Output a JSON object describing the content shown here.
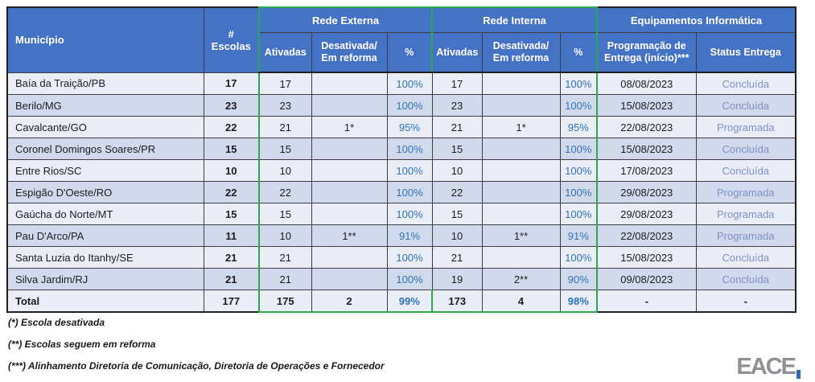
{
  "table": {
    "groups": {
      "rede_externa": "Rede Externa",
      "rede_interna": "Rede Interna",
      "equipamentos": "Equipamentos Informática"
    },
    "headers": {
      "municipio": "Município",
      "escolas": "# Escolas",
      "ativadas": "Ativadas",
      "desativada": "Desativada/ Em reforma",
      "pct": "%",
      "programacao": "Programação de Entrega (início)***",
      "status": "Status Entrega"
    },
    "rows": [
      {
        "municipio": "Baía da Traição/PB",
        "escolas": "17",
        "re_ativadas": "17",
        "re_desativada": "",
        "re_pct": "100%",
        "ri_ativadas": "17",
        "ri_desativada": "",
        "ri_pct": "100%",
        "programacao": "08/08/2023",
        "status": "Concluída"
      },
      {
        "municipio": "Berilo/MG",
        "escolas": "23",
        "re_ativadas": "23",
        "re_desativada": "",
        "re_pct": "100%",
        "ri_ativadas": "23",
        "ri_desativada": "",
        "ri_pct": "100%",
        "programacao": "15/08/2023",
        "status": "Concluída"
      },
      {
        "municipio": "Cavalcante/GO",
        "escolas": "22",
        "re_ativadas": "21",
        "re_desativada": "1*",
        "re_pct": "95%",
        "ri_ativadas": "21",
        "ri_desativada": "1*",
        "ri_pct": "95%",
        "programacao": "22/08/2023",
        "status": "Programada"
      },
      {
        "municipio": "Coronel Domingos Soares/PR",
        "escolas": "15",
        "re_ativadas": "15",
        "re_desativada": "",
        "re_pct": "100%",
        "ri_ativadas": "15",
        "ri_desativada": "",
        "ri_pct": "100%",
        "programacao": "15/08/2023",
        "status": "Concluída"
      },
      {
        "municipio": "Entre Rios/SC",
        "escolas": "10",
        "re_ativadas": "10",
        "re_desativada": "",
        "re_pct": "100%",
        "ri_ativadas": "10",
        "ri_desativada": "",
        "ri_pct": "100%",
        "programacao": "17/08/2023",
        "status": "Concluída"
      },
      {
        "municipio": "Espigão D'Oeste/RO",
        "escolas": "22",
        "re_ativadas": "22",
        "re_desativada": "",
        "re_pct": "100%",
        "ri_ativadas": "22",
        "ri_desativada": "",
        "ri_pct": "100%",
        "programacao": "29/08/2023",
        "status": "Programada"
      },
      {
        "municipio": "Gaúcha do Norte/MT",
        "escolas": "15",
        "re_ativadas": "15",
        "re_desativada": "",
        "re_pct": "100%",
        "ri_ativadas": "15",
        "ri_desativada": "",
        "ri_pct": "100%",
        "programacao": "29/08/2023",
        "status": "Programada"
      },
      {
        "municipio": "Pau D'Arco/PA",
        "escolas": "11",
        "re_ativadas": "10",
        "re_desativada": "1**",
        "re_pct": "91%",
        "ri_ativadas": "10",
        "ri_desativada": "1**",
        "ri_pct": "91%",
        "programacao": "22/08/2023",
        "status": "Programada"
      },
      {
        "municipio": "Santa Luzia do Itanhy/SE",
        "escolas": "21",
        "re_ativadas": "21",
        "re_desativada": "",
        "re_pct": "100%",
        "ri_ativadas": "21",
        "ri_desativada": "",
        "ri_pct": "100%",
        "programacao": "15/08/2023",
        "status": "Concluída"
      },
      {
        "municipio": "Silva Jardim/RJ",
        "escolas": "21",
        "re_ativadas": "21",
        "re_desativada": "",
        "re_pct": "100%",
        "ri_ativadas": "19",
        "ri_desativada": "2**",
        "ri_pct": "90%",
        "programacao": "09/08/2023",
        "status": "Concluída"
      }
    ],
    "total": {
      "municipio": "Total",
      "escolas": "177",
      "re_ativadas": "175",
      "re_desativada": "2",
      "re_pct": "99%",
      "ri_ativadas": "173",
      "ri_desativada": "4",
      "ri_pct": "98%",
      "programacao": "-",
      "status": "-"
    }
  },
  "footnotes": [
    "(*) Escola desativada",
    "(**) Escolas seguem em reforma",
    "(***) Alinhamento Diretoria de Comunicação, Diretoria de Operações e Fornecedor"
  ],
  "logo": {
    "text": "EACE"
  },
  "colors": {
    "header_blue": "#4472C4",
    "row_light": "#EAECF6",
    "row_dark": "#D3D9EC",
    "annotation_green": "#2EA84F",
    "pct_blue": "#2E75B6",
    "status_periwinkle": "#7D92C9",
    "logo_gray": "#8f9194",
    "logo_blue": "#2d6cb4"
  }
}
